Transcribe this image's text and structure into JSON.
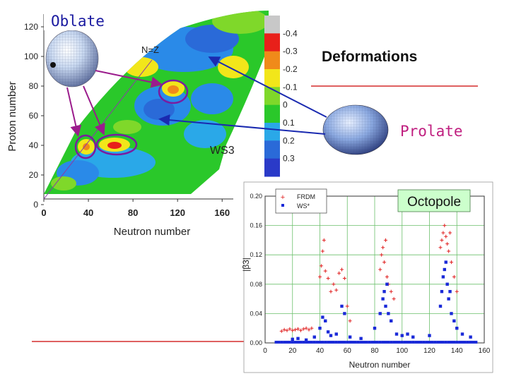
{
  "slide": {
    "title_oblate": "Oblate",
    "title_deformations": "Deformations",
    "title_prolate": "Prolate",
    "octopole_box_label": "Octopole"
  },
  "colors": {
    "oblate_text": "#1a1aa0",
    "prolate_text": "#c02080",
    "accent_line": "#cc0000",
    "box_fill": "#ccffcc",
    "arrow_purple": "#9b1c8c",
    "arrow_blue": "#1a2ab0"
  },
  "chart_data": [
    {
      "type": "heatmap",
      "title": "",
      "xlabel": "Neutron number",
      "ylabel": "Proton number",
      "xlim": [
        0,
        170
      ],
      "ylim": [
        0,
        125
      ],
      "x_ticks": [
        "0",
        "40",
        "80",
        "120",
        "160"
      ],
      "y_ticks": [
        "0",
        "20",
        "40",
        "60",
        "80",
        "100",
        "120"
      ],
      "annotations": [
        "N=Z",
        "WS3"
      ],
      "colorbar": {
        "ticks": [
          "-0.4",
          "-0.3",
          "-0.2",
          "-0.1",
          "0",
          "0.1",
          "0.2",
          "0.3"
        ],
        "colors": [
          "#c8c8c8",
          "#e8201a",
          "#f08a1a",
          "#f2e61a",
          "#7fd82a",
          "#2ac82a",
          "#2aa8e8",
          "#2a6ad8",
          "#2a3ac8"
        ]
      }
    },
    {
      "type": "scatter",
      "xlabel": "Neutron number",
      "ylabel": "|β3|",
      "xlim": [
        0,
        160
      ],
      "ylim": [
        0,
        0.2
      ],
      "x_ticks": [
        "0",
        "20",
        "40",
        "60",
        "80",
        "100",
        "120",
        "140",
        "160"
      ],
      "y_ticks": [
        "0.00",
        "0.04",
        "0.08",
        "0.12",
        "0.16",
        "0.20"
      ],
      "legend": {
        "position": "top-left",
        "entries": [
          "FRDM",
          "WS*"
        ]
      },
      "series": [
        {
          "name": "FRDM",
          "marker": "plus",
          "color": "#e02020",
          "points": [
            [
              12,
              0.016
            ],
            [
              14,
              0.018
            ],
            [
              16,
              0.017
            ],
            [
              18,
              0.019
            ],
            [
              20,
              0.017
            ],
            [
              22,
              0.018
            ],
            [
              24,
              0.019
            ],
            [
              26,
              0.017
            ],
            [
              28,
              0.019
            ],
            [
              30,
              0.02
            ],
            [
              32,
              0.018
            ],
            [
              34,
              0.02
            ],
            [
              40,
              0.09
            ],
            [
              41,
              0.105
            ],
            [
              42,
              0.125
            ],
            [
              43,
              0.14
            ],
            [
              44,
              0.098
            ],
            [
              46,
              0.088
            ],
            [
              48,
              0.07
            ],
            [
              50,
              0.08
            ],
            [
              52,
              0.072
            ],
            [
              54,
              0.095
            ],
            [
              56,
              0.1
            ],
            [
              58,
              0.088
            ],
            [
              60,
              0.05
            ],
            [
              62,
              0.03
            ],
            [
              84,
              0.1
            ],
            [
              85,
              0.12
            ],
            [
              86,
              0.13
            ],
            [
              87,
              0.11
            ],
            [
              88,
              0.14
            ],
            [
              89,
              0.09
            ],
            [
              90,
              0.08
            ],
            [
              92,
              0.07
            ],
            [
              94,
              0.06
            ],
            [
              128,
              0.13
            ],
            [
              129,
              0.14
            ],
            [
              130,
              0.15
            ],
            [
              131,
              0.16
            ],
            [
              132,
              0.145
            ],
            [
              133,
              0.135
            ],
            [
              134,
              0.125
            ],
            [
              135,
              0.15
            ],
            [
              136,
              0.11
            ],
            [
              138,
              0.09
            ],
            [
              140,
              0.07
            ]
          ]
        },
        {
          "name": "WS*",
          "marker": "square",
          "color": "#1a2ad8",
          "points": [
            [
              20,
              0.005
            ],
            [
              24,
              0.006
            ],
            [
              30,
              0.004
            ],
            [
              36,
              0.008
            ],
            [
              40,
              0.02
            ],
            [
              42,
              0.035
            ],
            [
              44,
              0.03
            ],
            [
              46,
              0.015
            ],
            [
              48,
              0.01
            ],
            [
              52,
              0.012
            ],
            [
              56,
              0.05
            ],
            [
              58,
              0.04
            ],
            [
              62,
              0.008
            ],
            [
              70,
              0.006
            ],
            [
              80,
              0.02
            ],
            [
              84,
              0.04
            ],
            [
              86,
              0.06
            ],
            [
              87,
              0.07
            ],
            [
              88,
              0.05
            ],
            [
              89,
              0.08
            ],
            [
              90,
              0.04
            ],
            [
              92,
              0.03
            ],
            [
              96,
              0.012
            ],
            [
              100,
              0.01
            ],
            [
              104,
              0.012
            ],
            [
              108,
              0.008
            ],
            [
              120,
              0.01
            ],
            [
              128,
              0.05
            ],
            [
              129,
              0.07
            ],
            [
              130,
              0.09
            ],
            [
              131,
              0.1
            ],
            [
              132,
              0.11
            ],
            [
              133,
              0.08
            ],
            [
              134,
              0.06
            ],
            [
              135,
              0.07
            ],
            [
              136,
              0.04
            ],
            [
              138,
              0.03
            ],
            [
              140,
              0.02
            ],
            [
              144,
              0.012
            ],
            [
              150,
              0.008
            ]
          ]
        }
      ]
    }
  ]
}
